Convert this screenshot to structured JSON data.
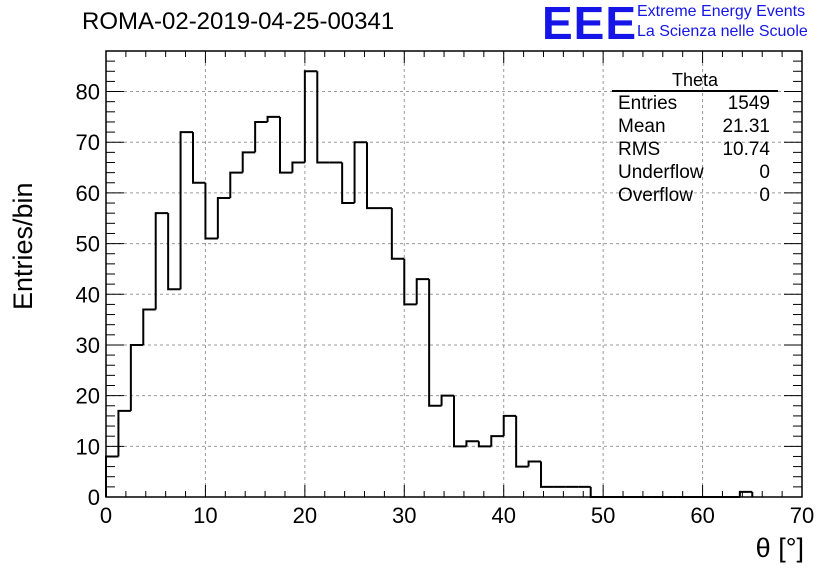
{
  "title": "ROMA-02-2019-04-25-00341",
  "logo": {
    "text": "EEE",
    "line1": "Extreme Energy Events",
    "line2": "La Scienza nelle Scuole",
    "color": "#1515e8"
  },
  "stats": {
    "title": "Theta",
    "rows": [
      {
        "label": "Entries",
        "value": "1549"
      },
      {
        "label": "Mean",
        "value": "21.31"
      },
      {
        "label": "RMS",
        "value": "10.74"
      },
      {
        "label": "Underflow",
        "value": "0"
      },
      {
        "label": "Overflow",
        "value": "0"
      }
    ]
  },
  "chart_data": {
    "type": "bar",
    "subtype": "histogram",
    "title": "ROMA-02-2019-04-25-00341",
    "xlabel": "θ [°]",
    "ylabel": "Entries/bin",
    "xlim": [
      0,
      70
    ],
    "ylim": [
      0,
      88
    ],
    "x_ticks": [
      0,
      10,
      20,
      30,
      40,
      50,
      60,
      70
    ],
    "y_ticks": [
      0,
      10,
      20,
      30,
      40,
      50,
      60,
      70,
      80
    ],
    "grid": true,
    "bin_width": 1.25,
    "bin_start": 0,
    "values": [
      8,
      17,
      30,
      37,
      56,
      41,
      72,
      62,
      51,
      59,
      64,
      68,
      74,
      75,
      64,
      66,
      84,
      66,
      66,
      58,
      70,
      57,
      57,
      47,
      38,
      43,
      18,
      20,
      10,
      11,
      10,
      12,
      16,
      6,
      7,
      2,
      2,
      2,
      2,
      0,
      0,
      0,
      0,
      0,
      0,
      0,
      0,
      0,
      0,
      0,
      0,
      1
    ],
    "line_color": "#000000",
    "grid_color": "#9a9a9a"
  }
}
